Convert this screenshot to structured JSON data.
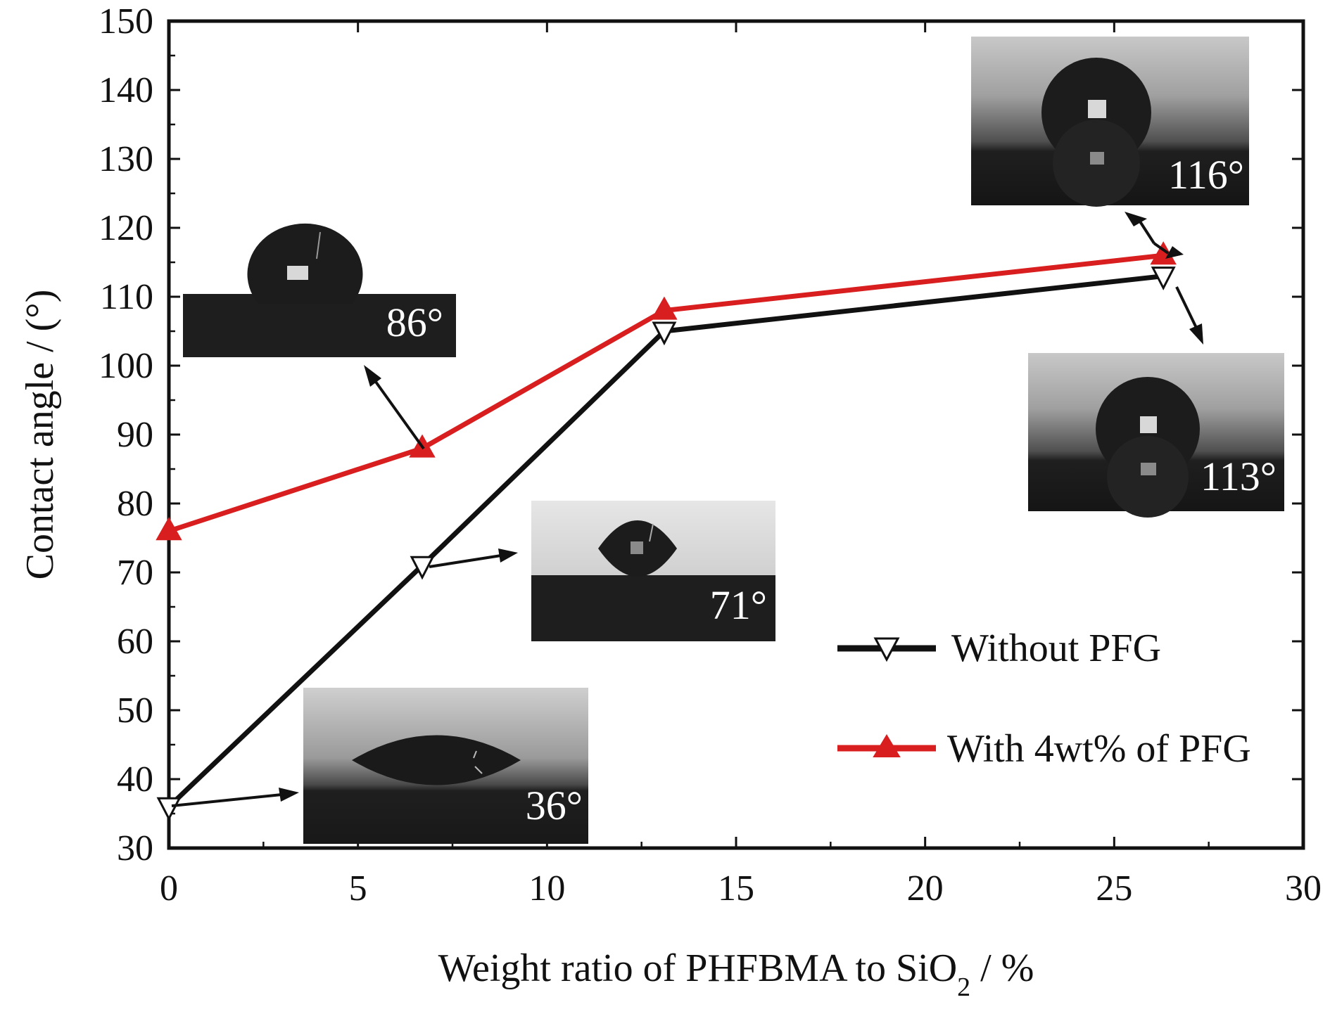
{
  "chart_data": {
    "type": "line",
    "xlabel": "Weight ratio of PHFBMA to SiO",
    "xlabel_sub": "2",
    "xlabel_suffix": " / %",
    "ylabel": "Contact angle / (°)",
    "xlim": [
      0,
      30
    ],
    "ylim": [
      30,
      150
    ],
    "x_ticks": [
      0,
      5,
      10,
      15,
      20,
      25,
      30
    ],
    "y_ticks": [
      30,
      40,
      50,
      60,
      70,
      80,
      90,
      100,
      110,
      120,
      130,
      140,
      150
    ],
    "x_tick_labels": [
      "0",
      "5",
      "10",
      "15",
      "20",
      "25",
      "30"
    ],
    "y_tick_labels": [
      "30",
      "40",
      "50",
      "60",
      "70",
      "80",
      "90",
      "100",
      "110",
      "120",
      "130",
      "140",
      "150"
    ],
    "grid": false,
    "legend_position": "bottom-right",
    "series": [
      {
        "name": "Without PFG",
        "color": "#111111",
        "marker": "triangle-down-open",
        "x": [
          0,
          6.7,
          13.1,
          26.3
        ],
        "y": [
          36,
          71,
          105,
          113
        ]
      },
      {
        "name": "With 4wt% of PFG",
        "color": "#d81e1e",
        "marker": "triangle-up-filled",
        "x": [
          0,
          6.7,
          13.1,
          26.3
        ],
        "y": [
          76,
          88,
          108,
          116
        ]
      }
    ],
    "annotations": [
      {
        "label": "36°",
        "style": "flat"
      },
      {
        "label": "71°",
        "style": "lens"
      },
      {
        "label": "86°",
        "style": "round"
      },
      {
        "label": "116°",
        "style": "sphere-reflect"
      },
      {
        "label": "113°",
        "style": "sphere-reflect"
      }
    ]
  }
}
